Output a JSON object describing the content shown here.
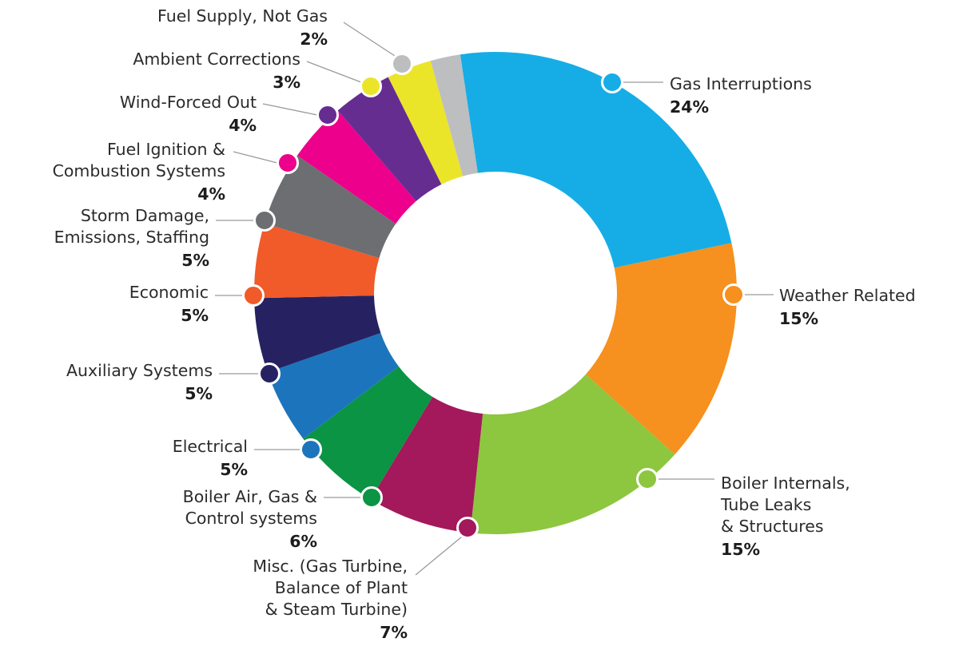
{
  "chart_data": {
    "type": "pie",
    "title": "",
    "slices": [
      {
        "label": [
          "Gas Interruptions"
        ],
        "value": 24,
        "value_label": "24%",
        "color": "#16ADE6",
        "icon": "gas-interruptions"
      },
      {
        "label": [
          "Weather Related"
        ],
        "value": 15,
        "value_label": "15%",
        "color": "#F6901E",
        "icon": "weather-related"
      },
      {
        "label": [
          "Boiler Internals,",
          "Tube Leaks",
          "& Structures"
        ],
        "value": 15,
        "value_label": "15%",
        "color": "#8DC63F",
        "icon": "boiler-internals"
      },
      {
        "label": [
          "Misc. (Gas Turbine,",
          "Balance of Plant",
          "& Steam Turbine)"
        ],
        "value": 7,
        "value_label": "7%",
        "color": "#A3195B",
        "icon": "misc"
      },
      {
        "label": [
          "Boiler Air, Gas &",
          "Control systems"
        ],
        "value": 6,
        "value_label": "6%",
        "color": "#0A9444",
        "icon": "boiler-air-gas"
      },
      {
        "label": [
          "Electrical"
        ],
        "value": 5,
        "value_label": "5%",
        "color": "#1C75BC",
        "icon": "electrical"
      },
      {
        "label": [
          "Auxiliary Systems"
        ],
        "value": 5,
        "value_label": "5%",
        "color": "#262262",
        "icon": "auxiliary-systems"
      },
      {
        "label": [
          "Economic"
        ],
        "value": 5,
        "value_label": "5%",
        "color": "#F15A29",
        "icon": "economic"
      },
      {
        "label": [
          "Storm Damage,",
          "Emissions, Staffing"
        ],
        "value": 5,
        "value_label": "5%",
        "color": "#6D6E71",
        "icon": "storm-damage"
      },
      {
        "label": [
          "Fuel Ignition &",
          "Combustion Systems"
        ],
        "value": 4,
        "value_label": "4%",
        "color": "#EC008C",
        "icon": "fuel-ignition"
      },
      {
        "label": [
          "Wind-Forced Out"
        ],
        "value": 4,
        "value_label": "4%",
        "color": "#662D91",
        "icon": "wind-forced-out"
      },
      {
        "label": [
          "Ambient Corrections"
        ],
        "value": 3,
        "value_label": "3%",
        "color": "#EBE52A",
        "icon": "ambient-corrections"
      },
      {
        "label": [
          "Fuel Supply, Not Gas"
        ],
        "value": 2,
        "value_label": "2%",
        "color": "#BCBEC0",
        "icon": "fuel-supply"
      }
    ]
  }
}
